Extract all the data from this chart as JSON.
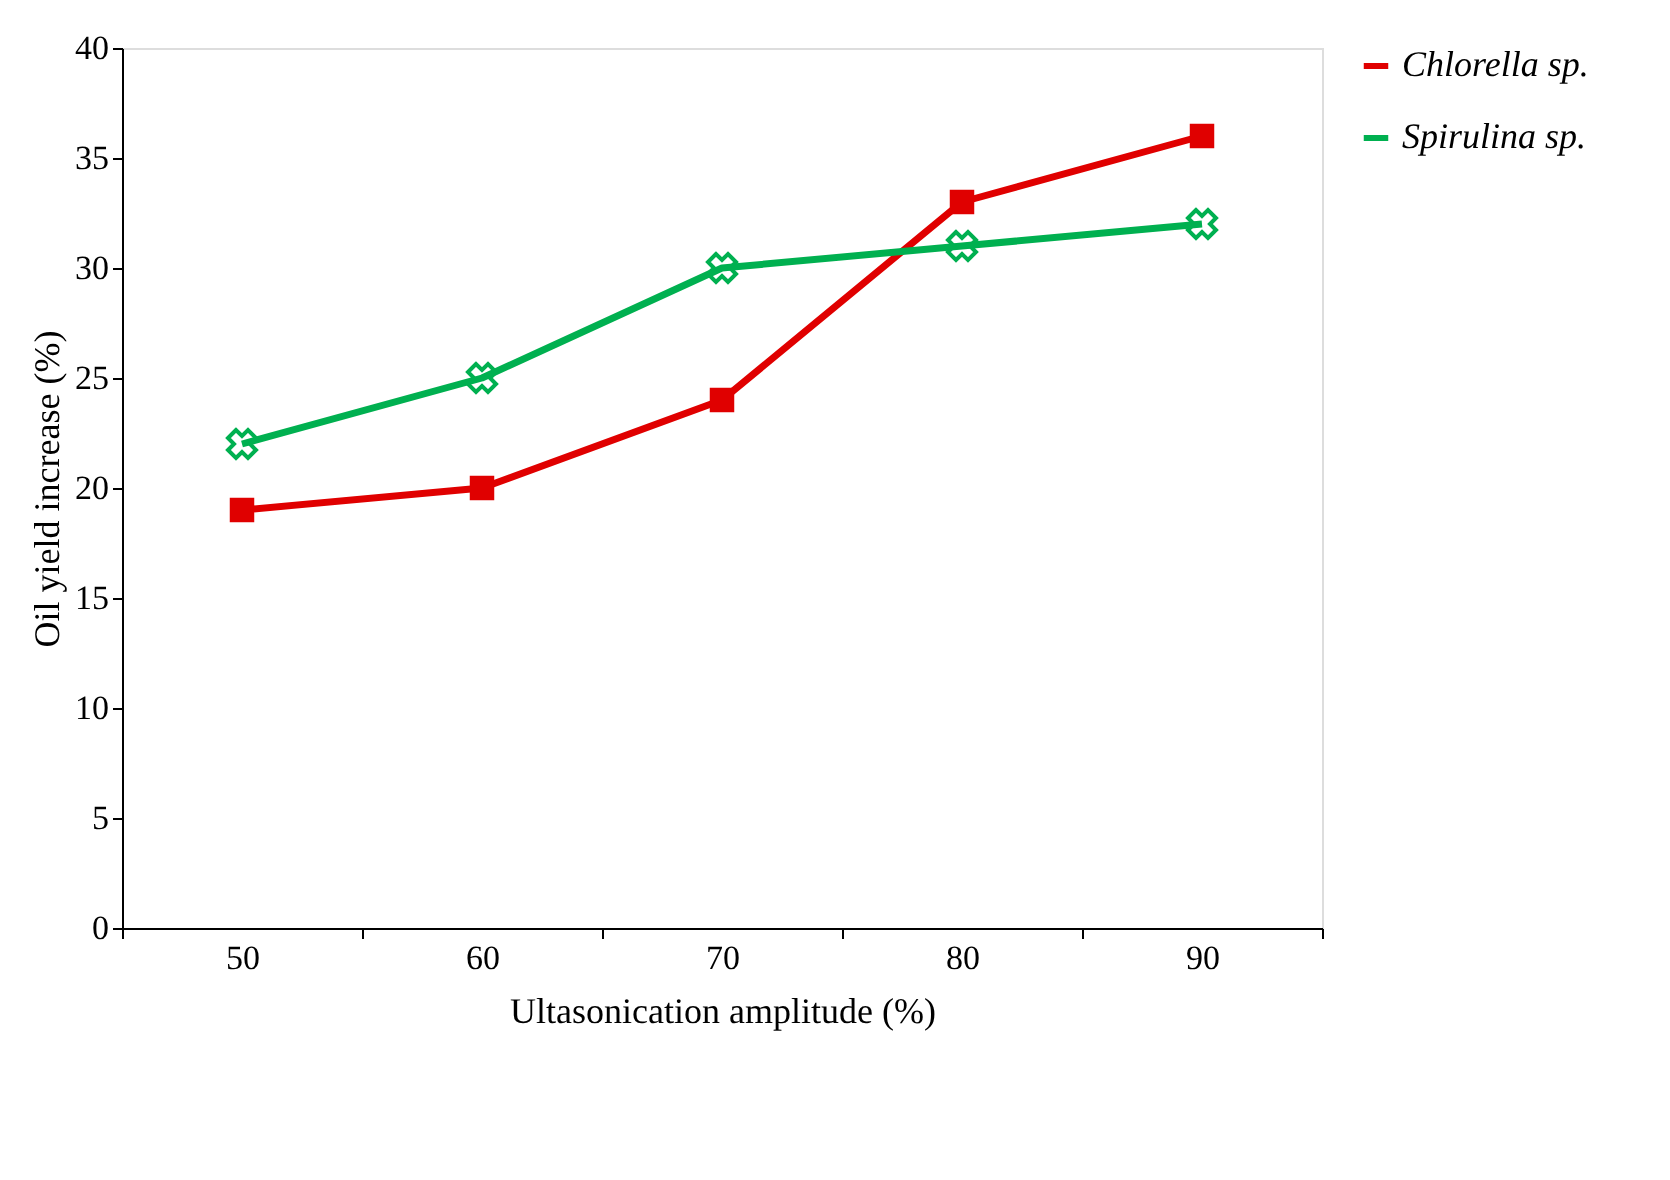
{
  "chart_data": {
    "type": "line",
    "xlabel": "Ultasonication amplitude (%)",
    "ylabel": "Oil yield increase (%)",
    "categories": [
      "50",
      "60",
      "70",
      "80",
      "90"
    ],
    "series": [
      {
        "name": "Chlorella sp.",
        "color": "#e00000",
        "marker": "square",
        "values": [
          19,
          20,
          24,
          33,
          36
        ]
      },
      {
        "name": "Spirulina sp.",
        "color": "#00b050",
        "marker": "cross",
        "values": [
          22,
          25,
          30,
          31,
          32
        ]
      }
    ],
    "ylim": [
      0,
      40
    ],
    "yticks": [
      0,
      5,
      10,
      15,
      20,
      25,
      30,
      35,
      40
    ],
    "grid": false,
    "legend": "right"
  }
}
